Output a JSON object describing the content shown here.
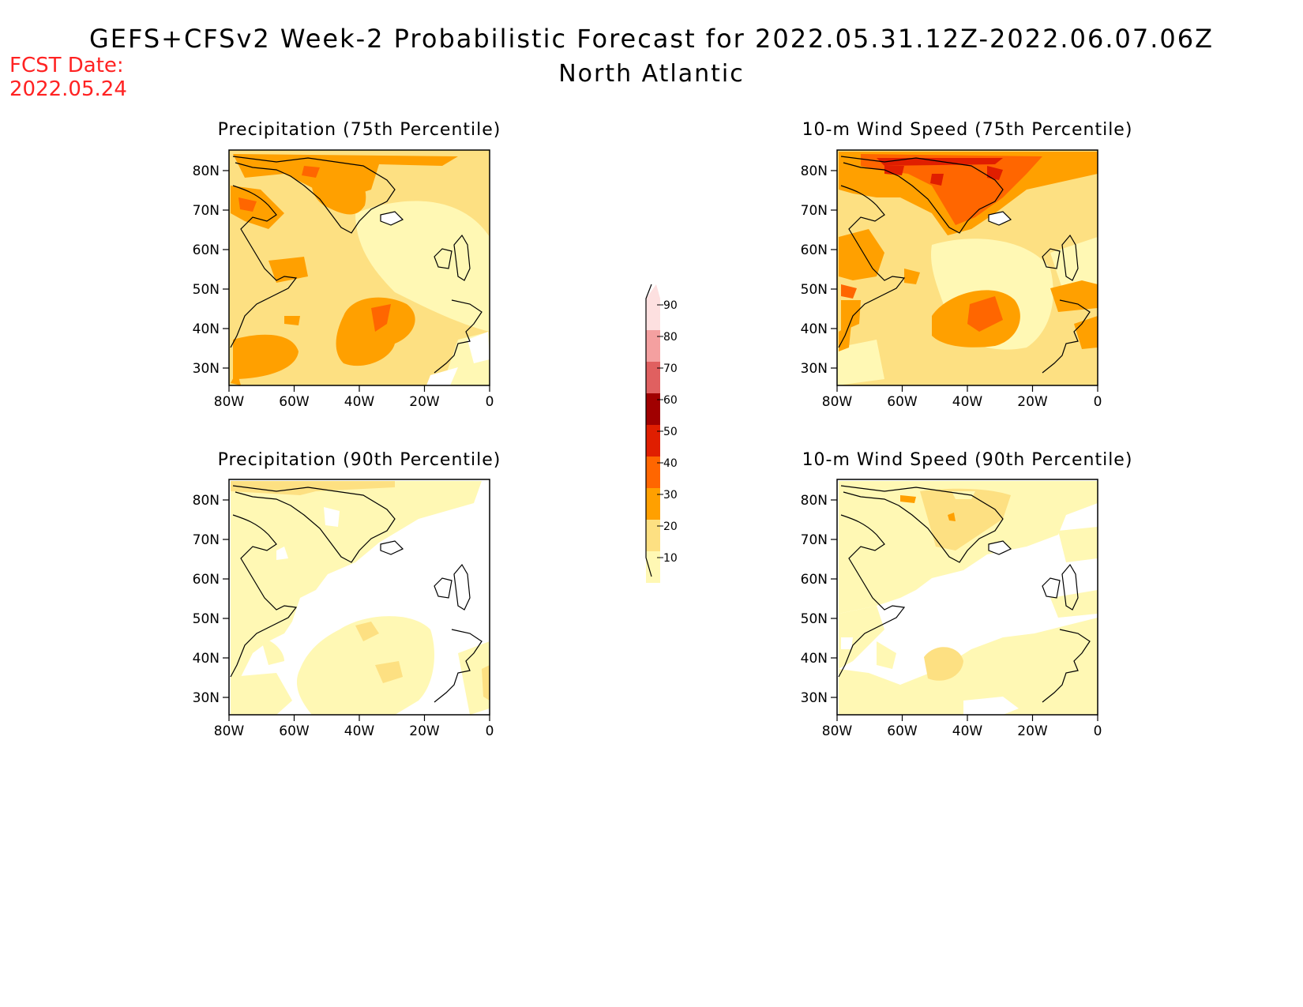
{
  "header": {
    "title": "GEFS+CFSv2 Week-2 Probabilistic Forecast for 2022.05.31.12Z-2022.06.07.06Z",
    "region": "North Atlantic",
    "fcst_label": "FCST Date:",
    "fcst_date": "2022.05.24"
  },
  "axes": {
    "x_ticks": [
      "80W",
      "60W",
      "40W",
      "20W",
      "0"
    ],
    "y_ticks": [
      "80N",
      "70N",
      "60N",
      "50N",
      "40N",
      "30N"
    ]
  },
  "panels": [
    {
      "title": "Precipitation (75th Percentile)"
    },
    {
      "title": "10-m Wind Speed (75th Percentile)"
    },
    {
      "title": "Precipitation (90th Percentile)"
    },
    {
      "title": "10-m Wind Speed (90th Percentile)"
    }
  ],
  "colorbar": {
    "labels": [
      "90",
      "80",
      "70",
      "60",
      "50",
      "40",
      "30",
      "20",
      "10"
    ],
    "colors": [
      "#fde0e0",
      "#f4a0a0",
      "#e06060",
      "#a00000",
      "#e01e00",
      "#ff6600",
      "#ffa000",
      "#fde082",
      "#fff8b4"
    ]
  }
}
